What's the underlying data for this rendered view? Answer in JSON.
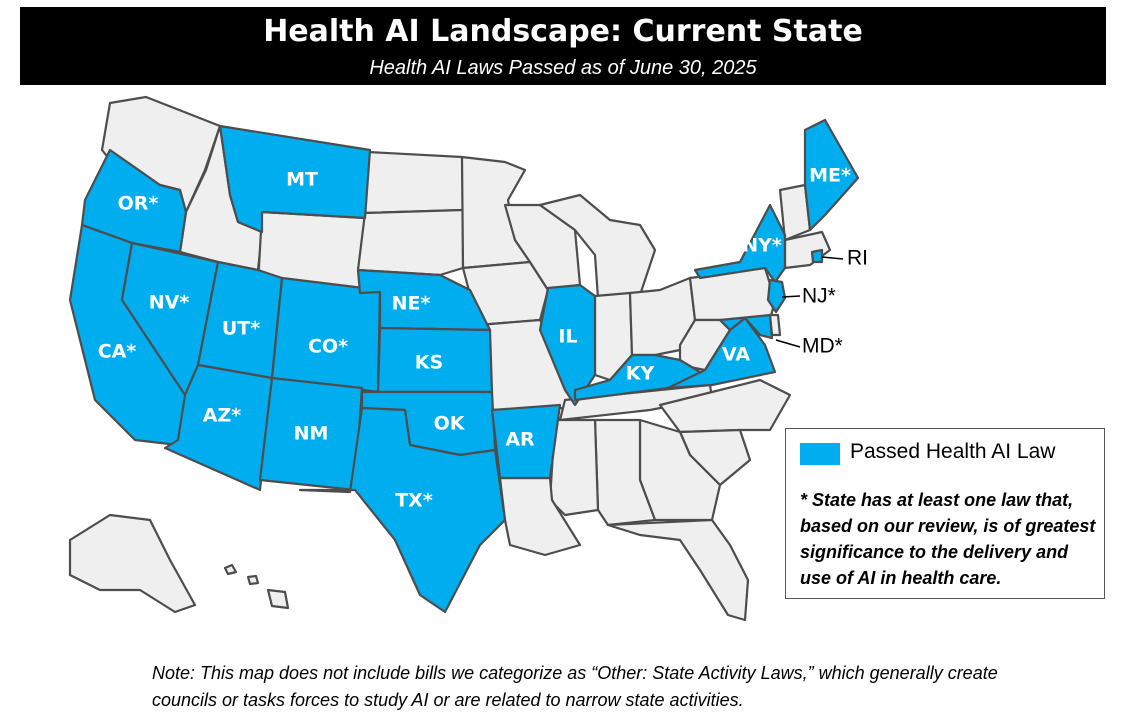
{
  "header": {
    "title": "Health AI Landscape: Current State",
    "subtitle": "Health AI Laws Passed as of June 30, 2025"
  },
  "colors": {
    "passed": "#00adef",
    "not_passed": "#efefef",
    "border": "#4d4d4d"
  },
  "legend": {
    "key_label": "Passed Health AI Law",
    "footnote_star": "*",
    "footnote_text": " State has at least one law that, based on our review, is of greatest significance to the delivery and use of AI in health care."
  },
  "note": "Note: This map does not include bills we categorize as “Other: State Activity Laws,” which generally create councils or tasks forces to study AI or are related to narrow state activities.",
  "states": {
    "OR": {
      "label": "OR*",
      "passed": true
    },
    "MT": {
      "label": "MT",
      "passed": true
    },
    "ME": {
      "label": "ME*",
      "passed": true
    },
    "NY": {
      "label": "NY*",
      "passed": true
    },
    "NV": {
      "label": "NV*",
      "passed": true
    },
    "NE": {
      "label": "NE*",
      "passed": true
    },
    "UT": {
      "label": "UT*",
      "passed": true
    },
    "CO": {
      "label": "CO*",
      "passed": true
    },
    "IL": {
      "label": "IL",
      "passed": true
    },
    "CA": {
      "label": "CA*",
      "passed": true
    },
    "KS": {
      "label": "KS",
      "passed": true
    },
    "KY": {
      "label": "KY",
      "passed": true
    },
    "VA": {
      "label": "VA",
      "passed": true
    },
    "AZ": {
      "label": "AZ*",
      "passed": true
    },
    "NM": {
      "label": "NM",
      "passed": true
    },
    "OK": {
      "label": "OK",
      "passed": true
    },
    "AR": {
      "label": "AR",
      "passed": true
    },
    "TX": {
      "label": "TX*",
      "passed": true
    },
    "RI": {
      "label": "RI",
      "passed": true
    },
    "NJ": {
      "label": "NJ*",
      "passed": true
    },
    "MD": {
      "label": "MD*",
      "passed": true
    }
  }
}
